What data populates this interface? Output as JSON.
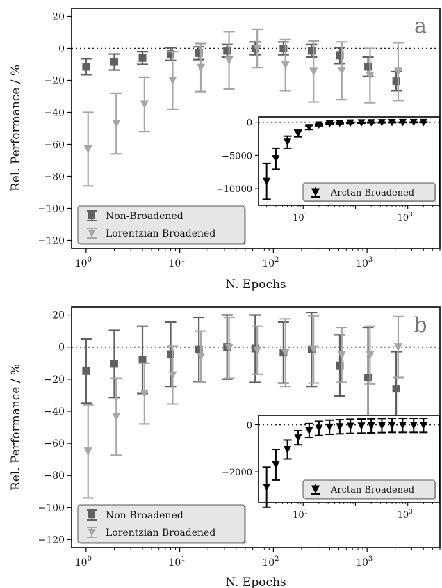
{
  "chart_data": [
    {
      "panel": "a",
      "type": "scatter",
      "xlabel": "N. Epochs",
      "ylabel": "Rel. Performance / %",
      "xscale": "log",
      "xlim": [
        0.7,
        6000
      ],
      "ylim": [
        -125,
        25
      ],
      "yticks": [
        20,
        0,
        -20,
        -40,
        -60,
        -80,
        -100,
        -120
      ],
      "xticks": [
        {
          "v": 1,
          "label": "10",
          "exp": "0"
        },
        {
          "v": 10,
          "label": "10",
          "exp": "1"
        },
        {
          "v": 100,
          "label": "10",
          "exp": "2"
        },
        {
          "v": 1000,
          "label": "10",
          "exp": "3"
        }
      ],
      "ytick_labels": [
        "20",
        "0",
        "−20",
        "−40",
        "−60",
        "−80",
        "−100",
        "−120"
      ],
      "reference_line": 0,
      "x": [
        1,
        2,
        4,
        8,
        16,
        32,
        64,
        128,
        256,
        512,
        1024,
        2048
      ],
      "series": [
        {
          "name": "Non-Broadened",
          "color": "#606060",
          "marker": "square",
          "values": [
            -11.5,
            -8.5,
            -6,
            -3.5,
            -3,
            -1.5,
            0,
            0,
            -1.5,
            -4.5,
            -11.5,
            -20.5
          ],
          "err": [
            5,
            5,
            4,
            4,
            4,
            4,
            4,
            4,
            4,
            5,
            6,
            6
          ]
        },
        {
          "name": "Lorentzian Broadened",
          "color": "#a6a6a6",
          "marker": "triangle-down",
          "values": [
            -63,
            -47,
            -35,
            -20,
            -12,
            -7.5,
            0,
            -10.5,
            -14.5,
            -14,
            -17,
            -14.5
          ],
          "err": [
            23,
            19,
            17,
            18,
            15,
            18,
            12,
            16,
            19,
            18,
            17,
            18
          ]
        }
      ],
      "legend_position": "lower-left",
      "inset": {
        "xscale": "log",
        "xlim": [
          1.4,
          4000
        ],
        "ylim": [
          -12500,
          800
        ],
        "yticks": [
          0,
          -5000,
          -10000
        ],
        "ytick_labels": [
          "0",
          "−5000",
          "−10000"
        ],
        "xticks": [
          {
            "v": 10,
            "label": "10",
            "exp": "1"
          },
          {
            "v": 1000,
            "label": "10",
            "exp": "3"
          }
        ],
        "reference_line": 0,
        "legend_position": "lower-right",
        "x": [
          2,
          3,
          5,
          8,
          13,
          20,
          32,
          50,
          80,
          130,
          200,
          320,
          500,
          800,
          1300,
          2000
        ],
        "series": [
          {
            "name": "Arctan Broadened",
            "color": "#000000",
            "marker": "triangle-down",
            "values": [
              -8900,
              -5500,
              -3000,
              -1700,
              -800,
              -400,
              -250,
              -150,
              -100,
              -80,
              -60,
              -50,
              -40,
              -30,
              -20,
              -20
            ],
            "err": [
              2700,
              1600,
              900,
              500,
              300,
              150,
              100,
              80,
              70,
              60,
              50,
              50,
              40,
              40,
              40,
              40
            ]
          }
        ]
      }
    },
    {
      "panel": "b",
      "type": "scatter",
      "xlabel": "N. Epochs",
      "ylabel": "Rel. Performance / %",
      "xscale": "log",
      "xlim": [
        0.7,
        6000
      ],
      "ylim": [
        -125,
        25
      ],
      "yticks": [
        20,
        0,
        -20,
        -40,
        -60,
        -80,
        -100,
        -120
      ],
      "xticks": [
        {
          "v": 1,
          "label": "10",
          "exp": "0"
        },
        {
          "v": 10,
          "label": "10",
          "exp": "1"
        },
        {
          "v": 100,
          "label": "10",
          "exp": "2"
        },
        {
          "v": 1000,
          "label": "10",
          "exp": "3"
        }
      ],
      "ytick_labels": [
        "20",
        "0",
        "−20",
        "−40",
        "−60",
        "−80",
        "−100",
        "−120"
      ],
      "reference_line": 0,
      "x": [
        1,
        2,
        4,
        8,
        16,
        32,
        64,
        128,
        256,
        512,
        1024,
        2048
      ],
      "series": [
        {
          "name": "Non-Broadened",
          "color": "#606060",
          "marker": "square",
          "values": [
            -15,
            -10.5,
            -8,
            -4.5,
            -1.5,
            0,
            -1,
            -3.5,
            -1.5,
            -11.5,
            -19,
            -26
          ],
          "err": [
            20,
            21,
            21,
            20,
            20,
            20,
            21,
            19,
            23,
            19,
            31,
            23
          ]
        },
        {
          "name": "Lorentzian Broadened",
          "color": "#a6a6a6",
          "marker": "triangle-down",
          "values": [
            -65,
            -43.5,
            -29,
            -17.5,
            -6,
            -0.5,
            -2,
            -3.5,
            -1.5,
            -5,
            -5,
            0
          ],
          "err": [
            29,
            24,
            19,
            18,
            16,
            19,
            15,
            21,
            21,
            17,
            18,
            19
          ]
        }
      ],
      "legend_position": "lower-left",
      "inset": {
        "xscale": "log",
        "xlim": [
          1.4,
          4000
        ],
        "ylim": [
          -3300,
          400
        ],
        "yticks": [
          0,
          -2000
        ],
        "ytick_labels": [
          "0",
          "−2000"
        ],
        "xticks": [
          {
            "v": 10,
            "label": "10",
            "exp": "1"
          },
          {
            "v": 1000,
            "label": "10",
            "exp": "3"
          }
        ],
        "reference_line": 0,
        "legend_position": "lower-right",
        "x": [
          2,
          3,
          5,
          8,
          13,
          20,
          32,
          50,
          80,
          130,
          200,
          320,
          500,
          800,
          1300,
          2000
        ],
        "series": [
          {
            "name": "Arctan Broadened",
            "color": "#000000",
            "marker": "triangle-down",
            "values": [
              -2650,
              -1700,
              -1050,
              -550,
              -250,
              -150,
              -100,
              -80,
              -60,
              -50,
              -40,
              -30,
              -20,
              -20,
              -20,
              -20
            ],
            "err": [
              850,
              650,
              400,
              300,
              300,
              300,
              300,
              300,
              300,
              300,
              300,
              300,
              300,
              300,
              300,
              300
            ]
          }
        ]
      }
    }
  ]
}
